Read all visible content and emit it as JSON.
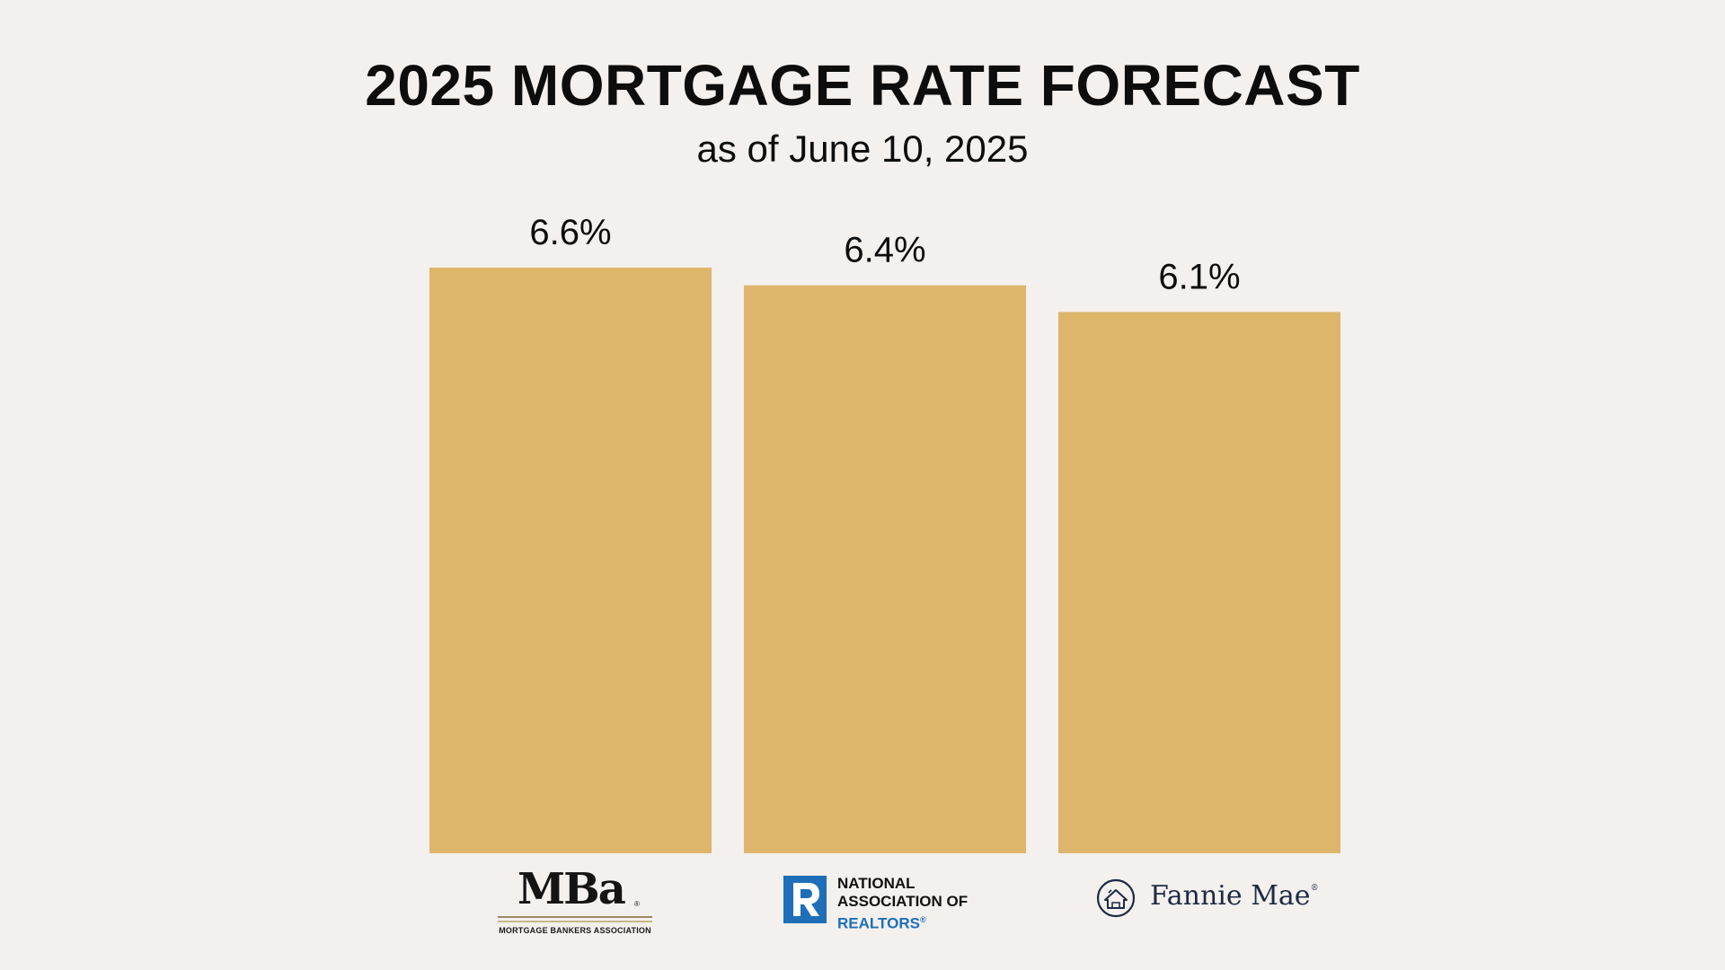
{
  "colors": {
    "background": "#f3f0ed",
    "bar": "#ddb66c",
    "text": "#0d0d0d",
    "nar_blue": "#1e6fb8",
    "fannie_navy": "#1d2a44"
  },
  "chart_data": {
    "type": "bar",
    "title": "2025 MORTGAGE RATE FORECAST",
    "subtitle": "as of June 10, 2025",
    "categories": [
      "Mortgage Bankers Association",
      "National Association of Realtors",
      "Fannie Mae"
    ],
    "values": [
      6.6,
      6.4,
      6.1
    ],
    "value_labels": [
      "6.6%",
      "6.4%",
      "6.1%"
    ],
    "unit": "%",
    "grid": false,
    "legend": "none"
  },
  "logos": {
    "mba": {
      "icon": "mba-logo",
      "mark": "MBa",
      "reg": "®",
      "subtitle": "MORTGAGE BANKERS ASSOCIATION"
    },
    "nar": {
      "icon": "realtor-r-logo",
      "line1": "NATIONAL",
      "line2": "ASSOCIATION OF",
      "line3": "REALTORS",
      "reg": "®"
    },
    "fannie": {
      "icon": "fannie-mae-house-logo",
      "name": "Fannie Mae",
      "reg": "®"
    }
  }
}
